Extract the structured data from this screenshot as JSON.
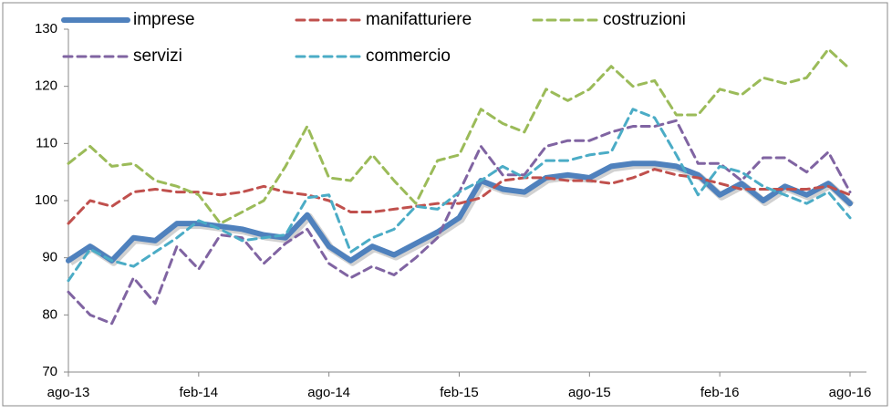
{
  "chart_data": {
    "type": "line",
    "categories": [
      "ago-13",
      null,
      null,
      null,
      null,
      null,
      "feb-14",
      null,
      null,
      null,
      null,
      null,
      "ago-14",
      null,
      null,
      null,
      null,
      null,
      "feb-15",
      null,
      null,
      null,
      null,
      null,
      "ago-15",
      null,
      null,
      null,
      null,
      null,
      "feb-16",
      null,
      null,
      null,
      null,
      null,
      "ago-16"
    ],
    "ylim": [
      70,
      130
    ],
    "yticks": [
      70,
      80,
      90,
      100,
      110,
      120,
      130
    ],
    "grid": false,
    "series": [
      {
        "name": "imprese",
        "color": "#4f81bd",
        "values": [
          89.5,
          92,
          89.5,
          93.5,
          93,
          96,
          96,
          95.5,
          95,
          94,
          93.5,
          97.5,
          92,
          89.5,
          92,
          90.5,
          92.5,
          94.5,
          97,
          103.5,
          102,
          101.5,
          104,
          104.5,
          104,
          106,
          106.5,
          106.5,
          106,
          104.5,
          101,
          103,
          100,
          102.5,
          101,
          103,
          99.5
        ]
      },
      {
        "name": "manifatturiere",
        "color": "#c0504d",
        "values": [
          96,
          100,
          99,
          101.5,
          102,
          101.5,
          101.5,
          101,
          101.5,
          102.5,
          101.5,
          101,
          100,
          98,
          98,
          98.5,
          99,
          99.5,
          99.5,
          100.5,
          103.5,
          104,
          104,
          103.5,
          103.5,
          103,
          104,
          105.5,
          104.5,
          104,
          103,
          102,
          102,
          102,
          102,
          102.5,
          101
        ]
      },
      {
        "name": "costruzioni",
        "color": "#9bbb59",
        "values": [
          106.5,
          109.5,
          106,
          106.5,
          103.5,
          102.5,
          101,
          96,
          98,
          100,
          106,
          113,
          104,
          103.5,
          108,
          103.5,
          99.5,
          107,
          108,
          116,
          113.5,
          112,
          119.5,
          117.5,
          119.5,
          123.5,
          120,
          121,
          115,
          115,
          119.5,
          118.5,
          121.5,
          120.5,
          121.5,
          126.5,
          123
        ]
      },
      {
        "name": "servizi",
        "color": "#8064a2",
        "values": [
          84,
          80,
          78.5,
          86.5,
          82,
          92,
          88,
          94,
          93.5,
          89,
          92.5,
          95,
          89,
          86.5,
          88.5,
          87,
          90,
          93.5,
          101.5,
          109.5,
          104.5,
          104.5,
          109.5,
          110.5,
          110.5,
          112,
          113,
          113,
          114,
          106.5,
          106.5,
          103.5,
          107.5,
          107.5,
          105,
          108.5,
          101.5
        ]
      },
      {
        "name": "commercio",
        "color": "#4bacc6",
        "values": [
          86,
          91.5,
          89.5,
          88.5,
          91,
          93.5,
          96.5,
          95,
          93,
          93.5,
          94,
          100.5,
          101,
          91,
          93.5,
          95,
          99,
          98.5,
          101.5,
          103.5,
          106,
          104,
          107,
          107,
          108,
          108.5,
          116,
          114.5,
          108,
          101,
          106,
          105,
          102.5,
          101,
          99.5,
          101.5,
          97
        ]
      }
    ]
  }
}
